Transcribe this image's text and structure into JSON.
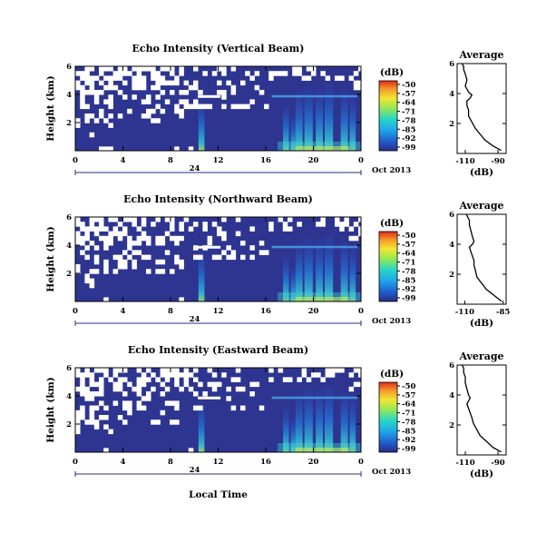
{
  "figure": {
    "xlabel": "Local Time",
    "date_label": "24",
    "date_suffix": "Oct 2013",
    "ylabel": "Height (km)",
    "colorbar_title": "(dB)",
    "colorbar_ticks": [
      "-50",
      "-57",
      "-64",
      "-71",
      "-78",
      "-85",
      "-92",
      "-99"
    ],
    "average_title": "Average",
    "average_xlabel": "(dB)"
  },
  "chart_data": [
    {
      "type": "heatmap",
      "title": "Echo Intensity (Vertical Beam)",
      "xlabel": "Local Time",
      "ylabel": "Height (km)",
      "x_ticks": [
        "0",
        "4",
        "8",
        "12",
        "16",
        "20",
        "0"
      ],
      "y_ticks": [
        "6",
        "4",
        "2"
      ],
      "xlim": [
        0,
        24
      ],
      "ylim": [
        0,
        6
      ],
      "zlim": [
        -99,
        -50
      ],
      "colorbar_label": "(dB)"
    },
    {
      "type": "line",
      "title": "Average",
      "xlabel": "(dB)",
      "x_ticks": [
        "-110",
        "-90"
      ],
      "y_ticks": [
        "6",
        "4",
        "2"
      ],
      "xlim": [
        -115,
        -85
      ],
      "ylim": [
        0,
        6
      ],
      "series": [
        {
          "x": [
            -88,
            -93,
            -98,
            -101,
            -104,
            -106,
            -108,
            -108,
            -109,
            -109,
            -107,
            -106,
            -108,
            -110,
            -109,
            -110,
            -111,
            -111,
            -112
          ],
          "y": [
            0.2,
            0.5,
            0.9,
            1.3,
            1.7,
            2.1,
            2.5,
            2.9,
            3.2,
            3.5,
            3.7,
            3.9,
            4.1,
            4.5,
            4.9,
            5.3,
            5.6,
            5.8,
            6.0
          ]
        }
      ]
    },
    {
      "type": "heatmap",
      "title": "Echo Intensity (Northward Beam)",
      "xlabel": "Local Time",
      "ylabel": "Height (km)",
      "x_ticks": [
        "0",
        "4",
        "8",
        "12",
        "16",
        "20",
        "0"
      ],
      "y_ticks": [
        "6",
        "4",
        "2"
      ],
      "xlim": [
        0,
        24
      ],
      "ylim": [
        0,
        6
      ],
      "zlim": [
        -99,
        -50
      ],
      "colorbar_label": "(dB)"
    },
    {
      "type": "line",
      "title": "Average",
      "xlabel": "(dB)",
      "x_ticks": [
        "-110",
        "-85"
      ],
      "y_ticks": [
        "6",
        "4",
        "2"
      ],
      "xlim": [
        -115,
        -83
      ],
      "ylim": [
        0,
        6
      ],
      "series": [
        {
          "x": [
            -86,
            -91,
            -96,
            -99,
            -102,
            -103,
            -104,
            -104,
            -105,
            -106,
            -107,
            -105,
            -104,
            -105,
            -106,
            -107,
            -107,
            -108,
            -109
          ],
          "y": [
            0.2,
            0.6,
            1.0,
            1.4,
            1.8,
            2.2,
            2.6,
            2.9,
            3.2,
            3.5,
            3.8,
            4.0,
            4.2,
            4.5,
            4.9,
            5.3,
            5.6,
            5.8,
            6.0
          ]
        }
      ]
    },
    {
      "type": "heatmap",
      "title": "Echo Intensity (Eastward Beam)",
      "xlabel": "Local Time",
      "ylabel": "Height (km)",
      "x_ticks": [
        "0",
        "4",
        "8",
        "12",
        "16",
        "20",
        "0"
      ],
      "y_ticks": [
        "6",
        "4",
        "2"
      ],
      "xlim": [
        0,
        24
      ],
      "ylim": [
        0,
        6
      ],
      "zlim": [
        -99,
        -50
      ],
      "colorbar_label": "(dB)"
    },
    {
      "type": "line",
      "title": "Average",
      "xlabel": "(dB)",
      "x_ticks": [
        "-110",
        "-90"
      ],
      "y_ticks": [
        "6",
        "4",
        "2"
      ],
      "xlim": [
        -115,
        -85
      ],
      "ylim": [
        0,
        6
      ],
      "series": [
        {
          "x": [
            -88,
            -93,
            -97,
            -101,
            -103,
            -105,
            -106,
            -107,
            -108,
            -109,
            -108,
            -107,
            -108,
            -109,
            -110,
            -110,
            -111,
            -111,
            -112
          ],
          "y": [
            0.2,
            0.5,
            0.9,
            1.3,
            1.7,
            2.1,
            2.5,
            2.8,
            3.1,
            3.4,
            3.6,
            3.8,
            4.0,
            4.4,
            4.8,
            5.2,
            5.5,
            5.8,
            6.0
          ]
        }
      ]
    }
  ],
  "colors": {
    "background_echo": "#2e3590",
    "missing": "#ffffff",
    "colormap": [
      "#2a2c86",
      "#1f5fd0",
      "#1fa8e8",
      "#26d6c8",
      "#8ee85a",
      "#f3e632",
      "#f49a2a",
      "#e02a1c"
    ]
  }
}
